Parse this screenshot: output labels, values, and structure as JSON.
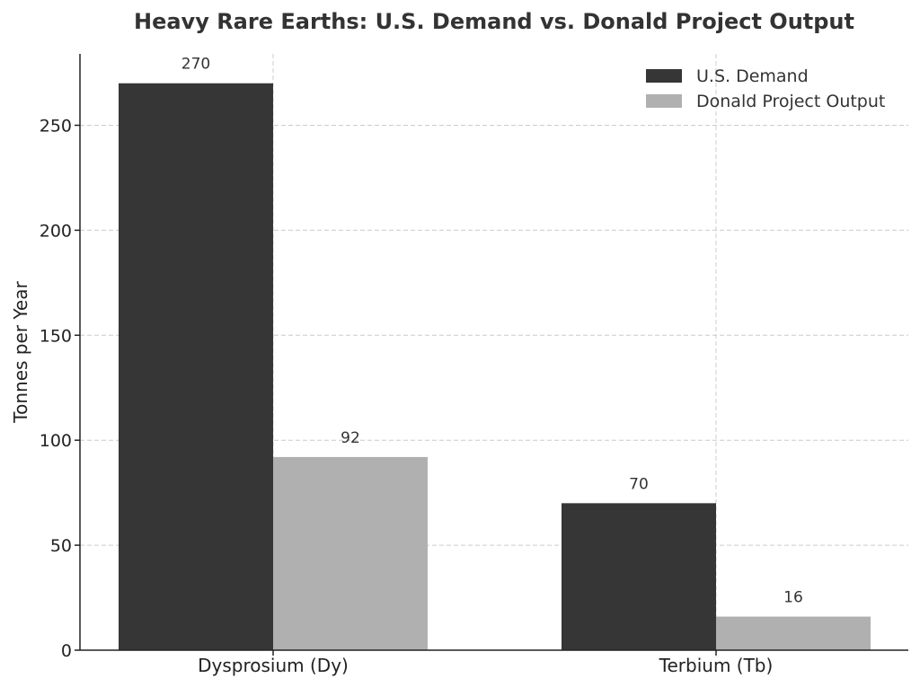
{
  "chart_data": {
    "type": "bar",
    "title": "Heavy Rare Earths: U.S. Demand vs. Donald Project Output",
    "xlabel": "",
    "ylabel": "Tonnes per Year",
    "categories": [
      "Dysprosium (Dy)",
      "Terbium (Tb)"
    ],
    "series": [
      {
        "name": "U.S. Demand",
        "values": [
          270,
          70
        ],
        "color": "#363636"
      },
      {
        "name": "Donald Project Output",
        "values": [
          92,
          16
        ],
        "color": "#b0b0b0"
      }
    ],
    "ylim": [
      0,
      284
    ],
    "yticks": [
      0,
      50,
      100,
      150,
      200,
      250
    ],
    "data_labels": true,
    "grid": true,
    "legend_position": "top-right"
  }
}
